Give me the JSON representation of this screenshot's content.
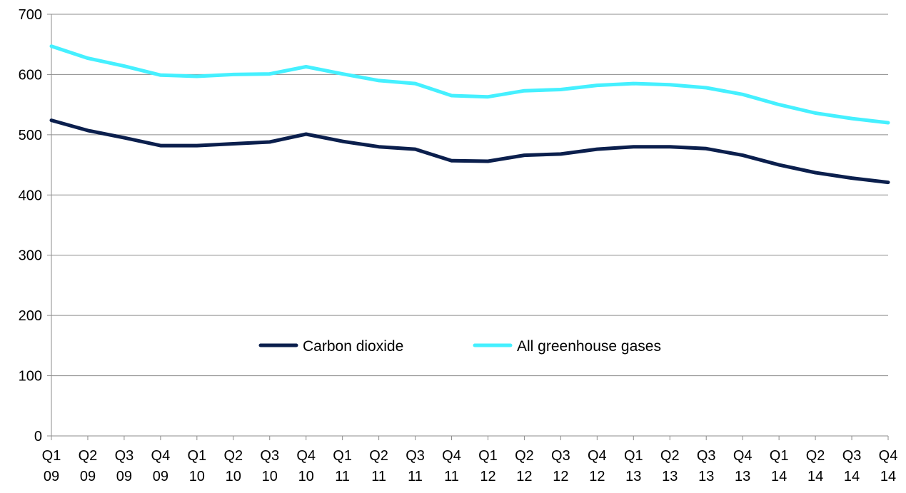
{
  "chart_data": {
    "type": "line",
    "title": "",
    "xlabel": "",
    "ylabel": "",
    "ylim": [
      0,
      700
    ],
    "yticks": [
      0,
      100,
      200,
      300,
      400,
      500,
      600,
      700
    ],
    "grid": true,
    "legend_position": "center",
    "categories": [
      "Q1 09",
      "Q2 09",
      "Q3 09",
      "Q4 09",
      "Q1 10",
      "Q2 10",
      "Q3 10",
      "Q4 10",
      "Q1 11",
      "Q2 11",
      "Q3 11",
      "Q4 11",
      "Q1 12",
      "Q2 12",
      "Q3 12",
      "Q4 12",
      "Q1 13",
      "Q2 13",
      "Q3 13",
      "Q4 13",
      "Q1 14",
      "Q2 14",
      "Q3 14",
      "Q4 14"
    ],
    "series": [
      {
        "name": "Carbon dioxide",
        "color": "#0b1f4d",
        "values": [
          524,
          507,
          495,
          482,
          482,
          485,
          488,
          501,
          489,
          480,
          476,
          457,
          456,
          466,
          468,
          476,
          480,
          480,
          477,
          466,
          450,
          437,
          428,
          421
        ]
      },
      {
        "name": "All greenhouse gases",
        "color": "#45f0ff",
        "values": [
          647,
          627,
          614,
          599,
          597,
          600,
          601,
          613,
          601,
          590,
          585,
          565,
          563,
          573,
          575,
          582,
          585,
          583,
          578,
          567,
          550,
          536,
          527,
          520
        ]
      }
    ]
  }
}
